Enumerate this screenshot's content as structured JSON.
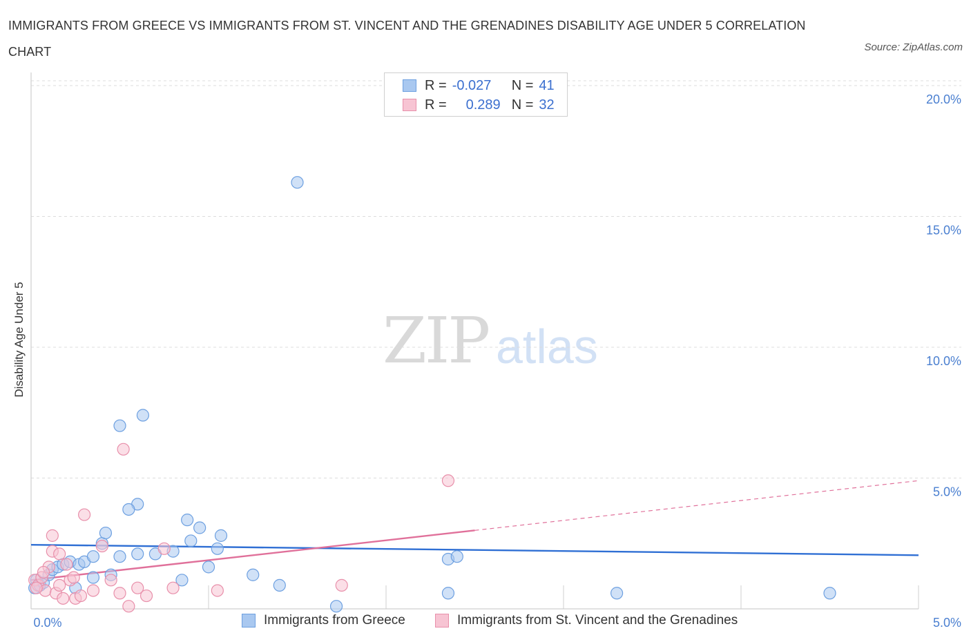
{
  "title": "IMMIGRANTS FROM GREECE VS IMMIGRANTS FROM ST. VINCENT AND THE GRENADINES DISABILITY AGE UNDER 5 CORRELATION CHART",
  "source": "Source: ZipAtlas.com",
  "watermark": {
    "zip": "ZIP",
    "atlas": "atlas"
  },
  "legend": {
    "r_label": "R =",
    "n_label": "N =",
    "rows": [
      {
        "r": "-0.027",
        "n": "41",
        "color": "#a9c8f0",
        "border": "#6c9fe0"
      },
      {
        "r": "0.289",
        "n": "32",
        "color": "#f7c4d3",
        "border": "#e88faa"
      }
    ]
  },
  "chart_data": {
    "type": "scatter",
    "title": "IMMIGRANTS FROM GREECE VS IMMIGRANTS FROM ST. VINCENT AND THE GRENADINES DISABILITY AGE UNDER 5 CORRELATION CHART",
    "xlabel": "",
    "ylabel": "Disability Age Under 5",
    "xlim": [
      0,
      5
    ],
    "ylim": [
      0,
      20.5
    ],
    "x_tick_labels": [
      "0.0%",
      "5.0%"
    ],
    "y_ticks": [
      5,
      10,
      15,
      20
    ],
    "y_tick_labels": [
      "5.0%",
      "10.0%",
      "15.0%",
      "20.0%"
    ],
    "grid": true,
    "series": [
      {
        "name": "Immigrants from Greece",
        "color": "#a9c8f0",
        "stroke": "#6c9fe0",
        "line_color": "#2f6fd4",
        "trend": {
          "x": [
            0,
            5
          ],
          "y": [
            2.45,
            2.05
          ],
          "dashed_from": null
        },
        "points": [
          [
            0.02,
            0.8
          ],
          [
            0.03,
            1.1
          ],
          [
            0.05,
            0.9
          ],
          [
            0.07,
            1.0
          ],
          [
            0.1,
            1.3
          ],
          [
            0.12,
            1.5
          ],
          [
            0.15,
            1.6
          ],
          [
            0.18,
            1.7
          ],
          [
            0.22,
            1.8
          ],
          [
            0.27,
            1.7
          ],
          [
            0.3,
            1.8
          ],
          [
            0.35,
            2.0
          ],
          [
            0.4,
            2.5
          ],
          [
            0.42,
            2.9
          ],
          [
            0.5,
            2.0
          ],
          [
            0.6,
            4.0
          ],
          [
            0.7,
            2.1
          ],
          [
            0.8,
            2.2
          ],
          [
            0.88,
            3.4
          ],
          [
            0.9,
            2.6
          ],
          [
            0.95,
            3.1
          ],
          [
            1.0,
            1.6
          ],
          [
            1.05,
            2.3
          ],
          [
            1.07,
            2.8
          ],
          [
            0.45,
            1.3
          ],
          [
            0.55,
            3.8
          ],
          [
            0.63,
            7.4
          ],
          [
            0.5,
            7.0
          ],
          [
            0.6,
            2.1
          ],
          [
            0.35,
            1.2
          ],
          [
            0.25,
            0.8
          ],
          [
            1.25,
            1.3
          ],
          [
            1.4,
            0.9
          ],
          [
            1.5,
            16.3
          ],
          [
            1.72,
            0.1
          ],
          [
            2.35,
            1.9
          ],
          [
            2.4,
            2.0
          ],
          [
            2.35,
            0.6
          ],
          [
            3.3,
            0.6
          ],
          [
            4.5,
            0.6
          ],
          [
            0.85,
            1.1
          ]
        ]
      },
      {
        "name": "Immigrants from St. Vincent and the Grenadines",
        "color": "#f7c4d3",
        "stroke": "#e88faa",
        "line_color": "#e0709a",
        "trend": {
          "x": [
            0,
            2.5,
            5
          ],
          "y": [
            1.1,
            3.0,
            4.9
          ],
          "dashed_from": 2.5
        },
        "points": [
          [
            0.02,
            1.1
          ],
          [
            0.04,
            0.9
          ],
          [
            0.06,
            1.2
          ],
          [
            0.08,
            0.7
          ],
          [
            0.1,
            1.6
          ],
          [
            0.12,
            2.2
          ],
          [
            0.14,
            0.6
          ],
          [
            0.16,
            2.1
          ],
          [
            0.18,
            0.4
          ],
          [
            0.2,
            1.7
          ],
          [
            0.22,
            1.1
          ],
          [
            0.25,
            0.4
          ],
          [
            0.28,
            0.5
          ],
          [
            0.3,
            3.6
          ],
          [
            0.35,
            0.7
          ],
          [
            0.4,
            2.4
          ],
          [
            0.45,
            1.1
          ],
          [
            0.5,
            0.6
          ],
          [
            0.52,
            6.1
          ],
          [
            0.55,
            0.1
          ],
          [
            0.6,
            0.8
          ],
          [
            0.75,
            2.3
          ],
          [
            0.8,
            0.8
          ],
          [
            1.05,
            0.7
          ],
          [
            0.12,
            2.8
          ],
          [
            0.07,
            1.4
          ],
          [
            0.03,
            0.8
          ],
          [
            0.16,
            0.9
          ],
          [
            0.24,
            1.2
          ],
          [
            1.75,
            0.9
          ],
          [
            2.35,
            4.9
          ],
          [
            0.65,
            0.5
          ]
        ]
      }
    ]
  }
}
